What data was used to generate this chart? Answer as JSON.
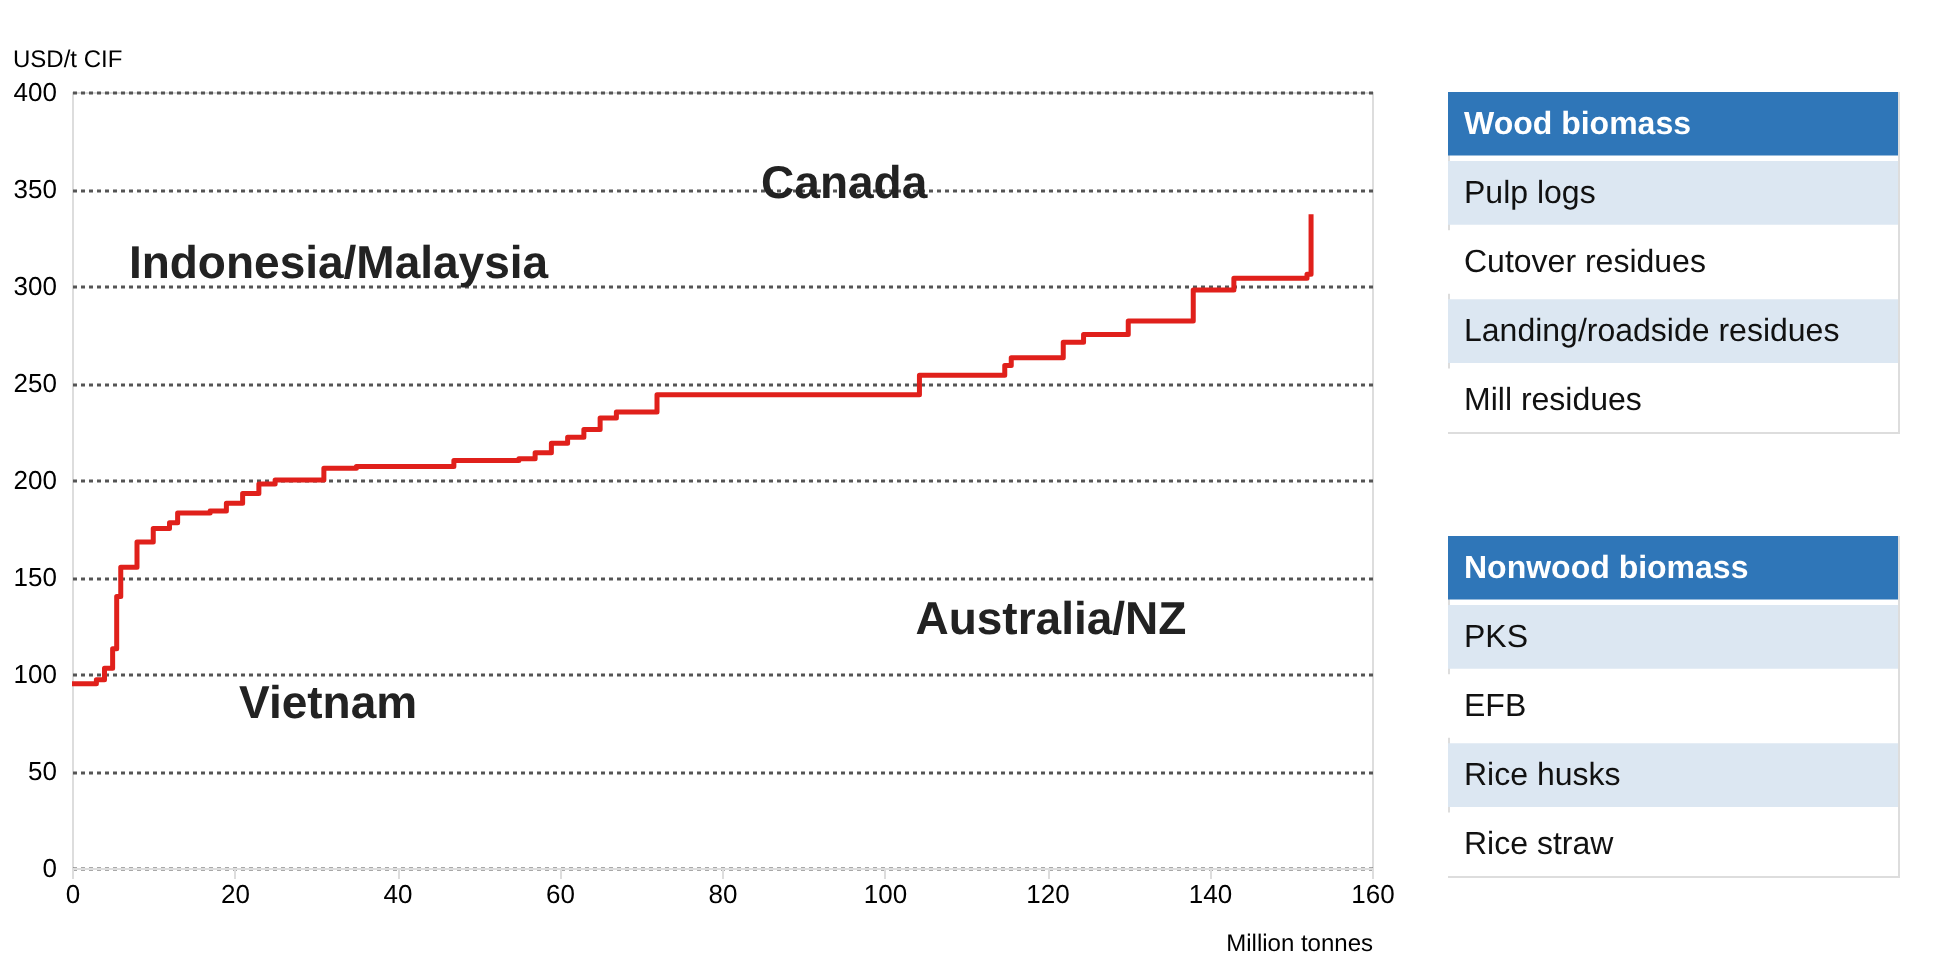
{
  "chart_data": [
    {
      "type": "step",
      "xlabel": "Million tonnes",
      "ylabel": "USD/t CIF",
      "color": "#e0201b",
      "x": [
        0,
        2,
        3,
        4,
        5,
        5.5,
        6,
        8,
        10,
        12,
        13,
        17,
        19,
        21,
        23,
        25,
        30,
        31,
        35,
        45,
        47,
        55,
        57,
        59,
        61,
        63,
        65,
        67,
        72,
        103,
        104.3,
        114.8,
        115.6,
        122,
        124.5,
        130,
        138,
        143,
        152,
        152.5
      ],
      "values": [
        95,
        95,
        97,
        103,
        113,
        140,
        155,
        168,
        175,
        178,
        183,
        184,
        188,
        193,
        198,
        200,
        200,
        206,
        207,
        207,
        210,
        211,
        214,
        219,
        222,
        226,
        232,
        235,
        244,
        244,
        254,
        259,
        263,
        271,
        275,
        282,
        298,
        304,
        306,
        337
      ],
      "xlim": [
        0,
        160
      ],
      "xticks": [
        0,
        20,
        40,
        60,
        80,
        100,
        120,
        140,
        160
      ],
      "ylim": [
        0,
        400
      ],
      "yticks": [
        0,
        50,
        100,
        150,
        200,
        250,
        300,
        350,
        400
      ],
      "grid": "y",
      "legend": false,
      "annotations": [
        "Indonesia/Malaysia",
        "Canada",
        "Vietnam",
        "Australia/NZ"
      ]
    },
    {
      "type": "other",
      "title": "Wood biomass",
      "color": "#2f76b8",
      "annotations": [
        "Pulp logs",
        "Cutover residues",
        "Landing/roadside residues",
        "Mill residues"
      ]
    },
    {
      "type": "other",
      "title": "Nonwood biomass",
      "color": "#2f76b8",
      "annotations": [
        "PKS",
        "EFB",
        "Rice husks",
        "Rice straw"
      ]
    }
  ]
}
